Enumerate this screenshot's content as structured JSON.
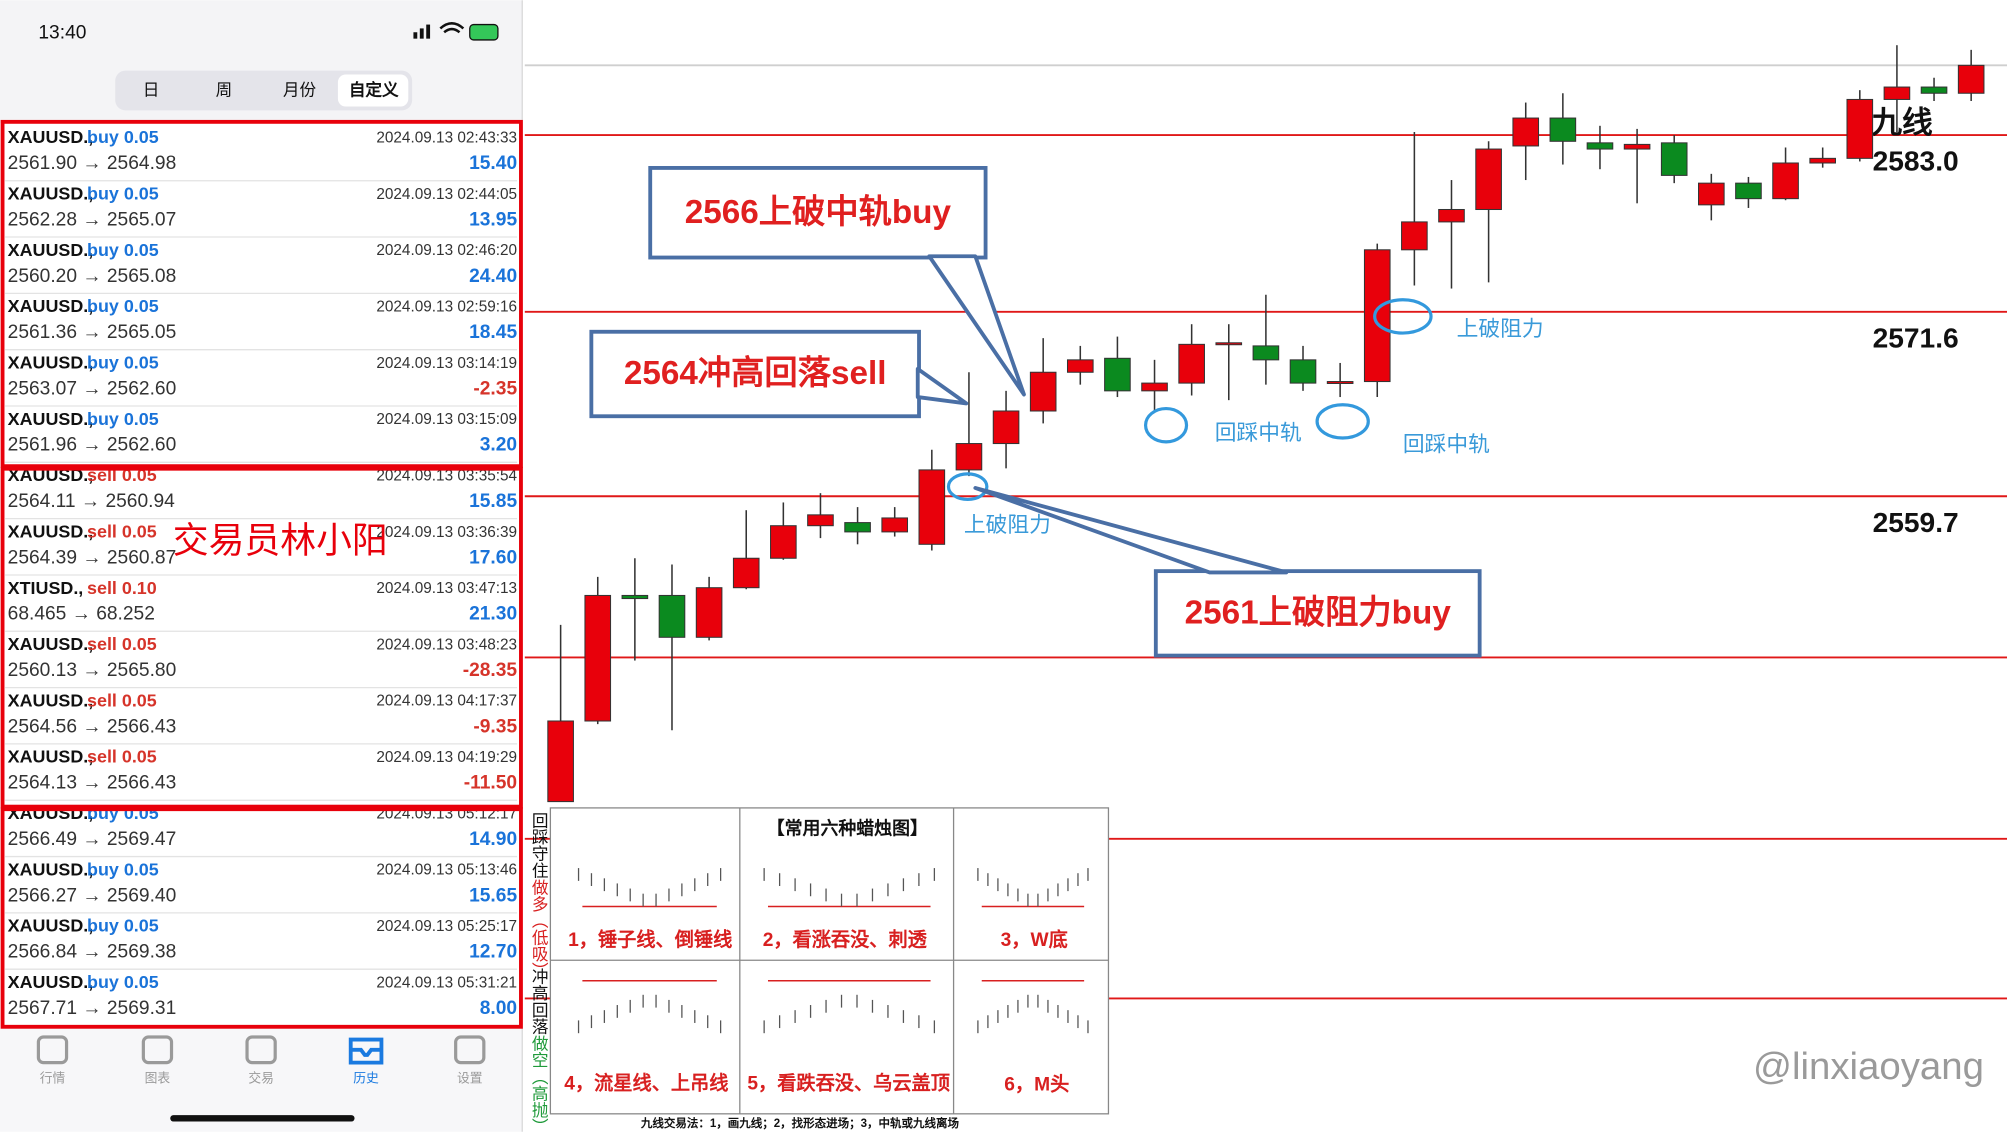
{
  "status_bar": {
    "time": "13:40"
  },
  "tabs": [
    "日",
    "周",
    "月份",
    "自定义"
  ],
  "selected_tab": 3,
  "trades": [
    {
      "symbol": "XAUUSD.,",
      "side": "buy 0.05",
      "time": "2024.09.13 02:43:33",
      "prices": "2561.90 → 2564.98",
      "profit": "15.40"
    },
    {
      "symbol": "XAUUSD.,",
      "side": "buy 0.05",
      "time": "2024.09.13 02:44:05",
      "prices": "2562.28 → 2565.07",
      "profit": "13.95"
    },
    {
      "symbol": "XAUUSD.,",
      "side": "buy 0.05",
      "time": "2024.09.13 02:46:20",
      "prices": "2560.20 → 2565.08",
      "profit": "24.40"
    },
    {
      "symbol": "XAUUSD.,",
      "side": "buy 0.05",
      "time": "2024.09.13 02:59:16",
      "prices": "2561.36 → 2565.05",
      "profit": "18.45"
    },
    {
      "symbol": "XAUUSD.,",
      "side": "buy 0.05",
      "time": "2024.09.13 03:14:19",
      "prices": "2563.07 → 2562.60",
      "profit": "-2.35"
    },
    {
      "symbol": "XAUUSD.,",
      "side": "buy 0.05",
      "time": "2024.09.13 03:15:09",
      "prices": "2561.96 → 2562.60",
      "profit": "3.20"
    },
    {
      "symbol": "XAUUSD.,",
      "side": "sell 0.05",
      "time": "2024.09.13 03:35:54",
      "prices": "2564.11 → 2560.94",
      "profit": "15.85"
    },
    {
      "symbol": "XAUUSD.,",
      "side": "sell 0.05",
      "time": "2024.09.13 03:36:39",
      "prices": "2564.39 → 2560.87",
      "profit": "17.60"
    },
    {
      "symbol": "XTIUSD.,",
      "side": "sell 0.10",
      "time": "2024.09.13 03:47:13",
      "prices": "68.465 → 68.252",
      "profit": "21.30"
    },
    {
      "symbol": "XAUUSD.,",
      "side": "sell 0.05",
      "time": "2024.09.13 03:48:23",
      "prices": "2560.13 → 2565.80",
      "profit": "-28.35"
    },
    {
      "symbol": "XAUUSD.,",
      "side": "sell 0.05",
      "time": "2024.09.13 04:17:37",
      "prices": "2564.56 → 2566.43",
      "profit": "-9.35"
    },
    {
      "symbol": "XAUUSD.,",
      "side": "sell 0.05",
      "time": "2024.09.13 04:19:29",
      "prices": "2564.13 → 2566.43",
      "profit": "-11.50"
    },
    {
      "symbol": "XAUUSD.,",
      "side": "buy 0.05",
      "time": "2024.09.13 05:12:17",
      "prices": "2566.49 → 2569.47",
      "profit": "14.90"
    },
    {
      "symbol": "XAUUSD.,",
      "side": "buy 0.05",
      "time": "2024.09.13 05:13:46",
      "prices": "2566.27 → 2569.40",
      "profit": "15.65"
    },
    {
      "symbol": "XAUUSD.,",
      "side": "buy 0.05",
      "time": "2024.09.13 05:25:17",
      "prices": "2566.84 → 2569.38",
      "profit": "12.70"
    },
    {
      "symbol": "XAUUSD.,",
      "side": "buy 0.05",
      "time": "2024.09.13 05:31:21",
      "prices": "2567.71 → 2569.31",
      "profit": "8.00"
    }
  ],
  "overlay_text": "交易员林小阳",
  "bottom_nav": {
    "items": [
      "行情",
      "图表",
      "交易",
      "历史",
      "设置"
    ],
    "active": 3
  },
  "chart_data": {
    "type": "candlestick",
    "ylim": [
      2518.7,
      2591.7
    ],
    "up_color": "#e8000b",
    "down_color": "#0b8a1f",
    "candles": [
      {
        "open": 2540.0,
        "high": 2551.4,
        "low": 2540.0,
        "close": 2545.2
      },
      {
        "open": 2545.2,
        "high": 2554.5,
        "low": 2545.0,
        "close": 2553.3
      },
      {
        "open": 2553.3,
        "high": 2555.7,
        "low": 2549.1,
        "close": 2553.1
      },
      {
        "open": 2553.3,
        "high": 2555.3,
        "low": 2544.6,
        "close": 2550.6
      },
      {
        "open": 2550.6,
        "high": 2554.5,
        "low": 2550.4,
        "close": 2553.8
      },
      {
        "open": 2553.8,
        "high": 2558.8,
        "low": 2553.7,
        "close": 2555.7
      },
      {
        "open": 2555.7,
        "high": 2559.3,
        "low": 2555.6,
        "close": 2557.8
      },
      {
        "open": 2557.8,
        "high": 2559.9,
        "low": 2557.0,
        "close": 2558.5
      },
      {
        "open": 2558.0,
        "high": 2559.0,
        "low": 2556.6,
        "close": 2557.4
      },
      {
        "open": 2557.4,
        "high": 2559.0,
        "low": 2557.1,
        "close": 2558.3
      },
      {
        "open": 2556.6,
        "high": 2562.7,
        "low": 2556.2,
        "close": 2561.4
      },
      {
        "open": 2561.4,
        "high": 2567.7,
        "low": 2561.0,
        "close": 2563.1
      },
      {
        "open": 2563.1,
        "high": 2566.5,
        "low": 2561.5,
        "close": 2565.2
      },
      {
        "open": 2565.2,
        "high": 2569.9,
        "low": 2564.4,
        "close": 2567.7
      },
      {
        "open": 2567.7,
        "high": 2569.4,
        "low": 2566.9,
        "close": 2568.5
      },
      {
        "open": 2568.6,
        "high": 2570.0,
        "low": 2566.1,
        "close": 2566.5
      },
      {
        "open": 2566.5,
        "high": 2568.5,
        "low": 2565.2,
        "close": 2567.0
      },
      {
        "open": 2567.0,
        "high": 2570.8,
        "low": 2566.2,
        "close": 2569.5
      },
      {
        "open": 2569.5,
        "high": 2570.8,
        "low": 2565.9,
        "close": 2569.6
      },
      {
        "open": 2569.4,
        "high": 2572.7,
        "low": 2566.9,
        "close": 2568.5
      },
      {
        "open": 2568.5,
        "high": 2569.4,
        "low": 2566.5,
        "close": 2567.0
      },
      {
        "open": 2567.0,
        "high": 2568.3,
        "low": 2566.1,
        "close": 2567.1
      },
      {
        "open": 2567.1,
        "high": 2576.0,
        "low": 2566.1,
        "close": 2575.6
      },
      {
        "open": 2575.6,
        "high": 2583.2,
        "low": 2573.3,
        "close": 2577.4
      },
      {
        "open": 2577.4,
        "high": 2580.1,
        "low": 2573.1,
        "close": 2578.2
      },
      {
        "open": 2578.2,
        "high": 2582.6,
        "low": 2573.5,
        "close": 2582.1
      },
      {
        "open": 2582.3,
        "high": 2585.1,
        "low": 2580.1,
        "close": 2584.1
      },
      {
        "open": 2584.1,
        "high": 2585.7,
        "low": 2581.1,
        "close": 2582.6
      },
      {
        "open": 2582.5,
        "high": 2583.6,
        "low": 2580.8,
        "close": 2582.1
      },
      {
        "open": 2582.1,
        "high": 2583.4,
        "low": 2578.6,
        "close": 2582.4
      },
      {
        "open": 2582.5,
        "high": 2583.0,
        "low": 2579.9,
        "close": 2580.4
      },
      {
        "open": 2578.5,
        "high": 2580.5,
        "low": 2577.5,
        "close": 2579.9
      },
      {
        "open": 2579.9,
        "high": 2580.3,
        "low": 2578.3,
        "close": 2578.9
      },
      {
        "open": 2578.9,
        "high": 2582.2,
        "low": 2578.8,
        "close": 2581.2
      },
      {
        "open": 2581.2,
        "high": 2582.2,
        "low": 2580.9,
        "close": 2581.5
      },
      {
        "open": 2581.5,
        "high": 2585.9,
        "low": 2581.3,
        "close": 2585.3
      },
      {
        "open": 2585.3,
        "high": 2588.8,
        "low": 2583.2,
        "close": 2586.1
      },
      {
        "open": 2586.1,
        "high": 2586.7,
        "low": 2585.2,
        "close": 2585.7
      },
      {
        "open": 2585.7,
        "high": 2588.5,
        "low": 2585.2,
        "close": 2587.5
      }
    ],
    "level_title": "九线",
    "level_color": "#e01818",
    "levels": [
      {
        "value": 2583.0,
        "label": "2583.0"
      },
      2571.6,
      2559.7
    ],
    "extra_lines": [
      {
        "value": 2587.5,
        "color": "#cfcfcf"
      },
      {
        "value": 2549.3,
        "color": "#e01818"
      },
      {
        "value": 2537.6,
        "color": "#e01818"
      },
      {
        "value": 2527.3,
        "color": "#e01818"
      }
    ],
    "callouts": [
      "2566上破中轨buy",
      "2564冲高回落sell",
      "2561上破阻力buy"
    ],
    "notes": [
      "上破阻力",
      "回踩中轨",
      "回踩中轨",
      "上破阻力"
    ]
  },
  "legend_panel": {
    "title": "【常用六种蜡烛图】",
    "labels": [
      "1，锤子线、倒锤线",
      "2，看涨吞没、刺透",
      "3，W底",
      "4，流星线、上吊线",
      "5，看跌吞没、乌云盖顶",
      "6，M头"
    ],
    "side_top": [
      "回踩守住",
      "做多（低吸）"
    ],
    "side_bottom": [
      "冲高回落",
      "做空（高抛）"
    ],
    "footer": "九线交易法：1，画九线；2，找形态进场；3，中轨或九线离场"
  },
  "signature": "@linxiaoyang"
}
